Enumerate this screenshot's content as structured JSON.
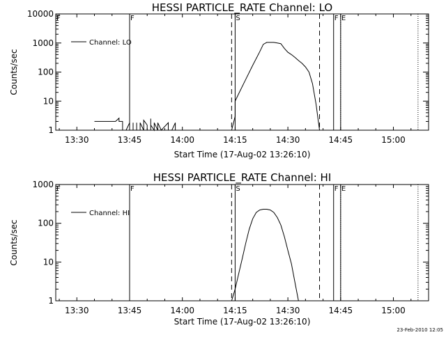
{
  "footer": {
    "timestamp": "23-Feb-2010 12:05"
  },
  "chart_data": [
    {
      "type": "line",
      "title": "HESSI PARTICLE_RATE Channel: LO",
      "xlabel": "Start Time (17-Aug-02 13:26:10)",
      "ylabel": "Counts/sec",
      "y_scale": "log",
      "ylim": [
        1,
        10000
      ],
      "xlim": [
        "13:24",
        "15:10"
      ],
      "x_ticks": [
        "13:30",
        "13:45",
        "14:00",
        "14:15",
        "14:30",
        "14:45",
        "15:00"
      ],
      "y_ticks": [
        "1",
        "10",
        "100",
        "1000",
        "10000"
      ],
      "legend": {
        "position": "top-left",
        "entries": [
          "Channel: LO"
        ]
      },
      "series": [
        {
          "name": "Channel: LO",
          "segments": [
            {
              "x": [
                "13:35",
                "13:41",
                "13:42",
                "13:42",
                "13:43",
                "13:43",
                "13:44"
              ],
              "y": [
                2,
                2,
                2.6,
                2,
                2,
                1,
                1
              ]
            },
            {
              "x": [
                "13:44",
                "13:45",
                "13:45",
                "13:46",
                "13:46",
                "13:46",
                "13:47",
                "13:47",
                "13:47",
                "13:48",
                "13:48",
                "13:49",
                "13:49",
                "13:49",
                "13:50",
                "13:50",
                "13:51",
                "13:51",
                "13:51",
                "13:52",
                "13:52",
                "13:53",
                "13:53",
                "13:53",
                "13:54",
                "13:54",
                "13:56",
                "13:56",
                "13:57",
                "13:58",
                "13:58",
                "13:59"
              ],
              "y": [
                1,
                1.8,
                1,
                1,
                1.8,
                1,
                1,
                1.8,
                1,
                1,
                1.8,
                1,
                1,
                2.2,
                1.5,
                1,
                1,
                2.5,
                1.5,
                1,
                1.8,
                1,
                1,
                1.8,
                1,
                1,
                1.8,
                1,
                1,
                1.8,
                1,
                1
              ]
            },
            {
              "x": [
                "14:14",
                "14:15",
                "14:15",
                "14:15",
                "14:16",
                "14:18",
                "14:20",
                "14:22",
                "14:23",
                "14:24",
                "14:25",
                "14:26",
                "14:27",
                "14:28",
                "14:29",
                "14:30",
                "14:31",
                "14:32",
                "14:33",
                "14:34",
                "14:35",
                "14:36",
                "14:37",
                "14:38",
                "14:39"
              ],
              "y": [
                1,
                3,
                6,
                10,
                18,
                55,
                170,
                500,
                900,
                1050,
                1050,
                1050,
                1000,
                950,
                650,
                480,
                400,
                320,
                250,
                200,
                150,
                100,
                40,
                8,
                1
              ]
            }
          ]
        }
      ],
      "annotations": [
        {
          "x": "13:24",
          "label": "F",
          "style": "solid"
        },
        {
          "x": "13:45",
          "label": "F",
          "style": "solid"
        },
        {
          "x": "14:14",
          "label": "",
          "style": "dashed"
        },
        {
          "x": "14:15",
          "label": "S",
          "style": "solid"
        },
        {
          "x": "14:39",
          "label": "",
          "style": "dashed"
        },
        {
          "x": "14:43",
          "label": "F",
          "style": "solid"
        },
        {
          "x": "14:45",
          "label": "E",
          "style": "solid"
        },
        {
          "x": "14:45",
          "label": "",
          "style": "dotted"
        },
        {
          "x": "15:07",
          "label": "",
          "style": "dotted"
        }
      ]
    },
    {
      "type": "line",
      "title": "HESSI PARTICLE_RATE Channel: HI",
      "xlabel": "Start Time (17-Aug-02 13:26:10)",
      "ylabel": "Counts/sec",
      "y_scale": "log",
      "ylim": [
        1,
        1000
      ],
      "xlim": [
        "13:24",
        "15:10"
      ],
      "x_ticks": [
        "13:30",
        "13:45",
        "14:00",
        "14:15",
        "14:30",
        "14:45",
        "15:00"
      ],
      "y_ticks": [
        "1",
        "10",
        "100",
        "1000"
      ],
      "legend": {
        "position": "top-left",
        "entries": [
          "Channel: HI"
        ]
      },
      "series": [
        {
          "name": "Channel: HI",
          "segments": [
            {
              "x": [
                "14:14",
                "14:15",
                "14:16",
                "14:17",
                "14:18",
                "14:19",
                "14:20",
                "14:21",
                "14:22",
                "14:23",
                "14:24",
                "14:25",
                "14:26",
                "14:27",
                "14:28",
                "14:29",
                "14:30",
                "14:31",
                "14:32",
                "14:33"
              ],
              "y": [
                1,
                2,
                5,
                12,
                30,
                70,
                130,
                190,
                220,
                230,
                230,
                220,
                190,
                140,
                90,
                45,
                20,
                9,
                3,
                1
              ]
            }
          ]
        }
      ],
      "annotations": [
        {
          "x": "13:24",
          "label": "F",
          "style": "solid"
        },
        {
          "x": "13:45",
          "label": "F",
          "style": "solid"
        },
        {
          "x": "14:14",
          "label": "",
          "style": "dashed"
        },
        {
          "x": "14:15",
          "label": "S",
          "style": "solid"
        },
        {
          "x": "14:39",
          "label": "",
          "style": "dashed"
        },
        {
          "x": "14:43",
          "label": "F",
          "style": "solid"
        },
        {
          "x": "14:45",
          "label": "E",
          "style": "solid"
        },
        {
          "x": "14:45",
          "label": "",
          "style": "dotted"
        },
        {
          "x": "15:07",
          "label": "",
          "style": "dotted"
        }
      ]
    }
  ]
}
